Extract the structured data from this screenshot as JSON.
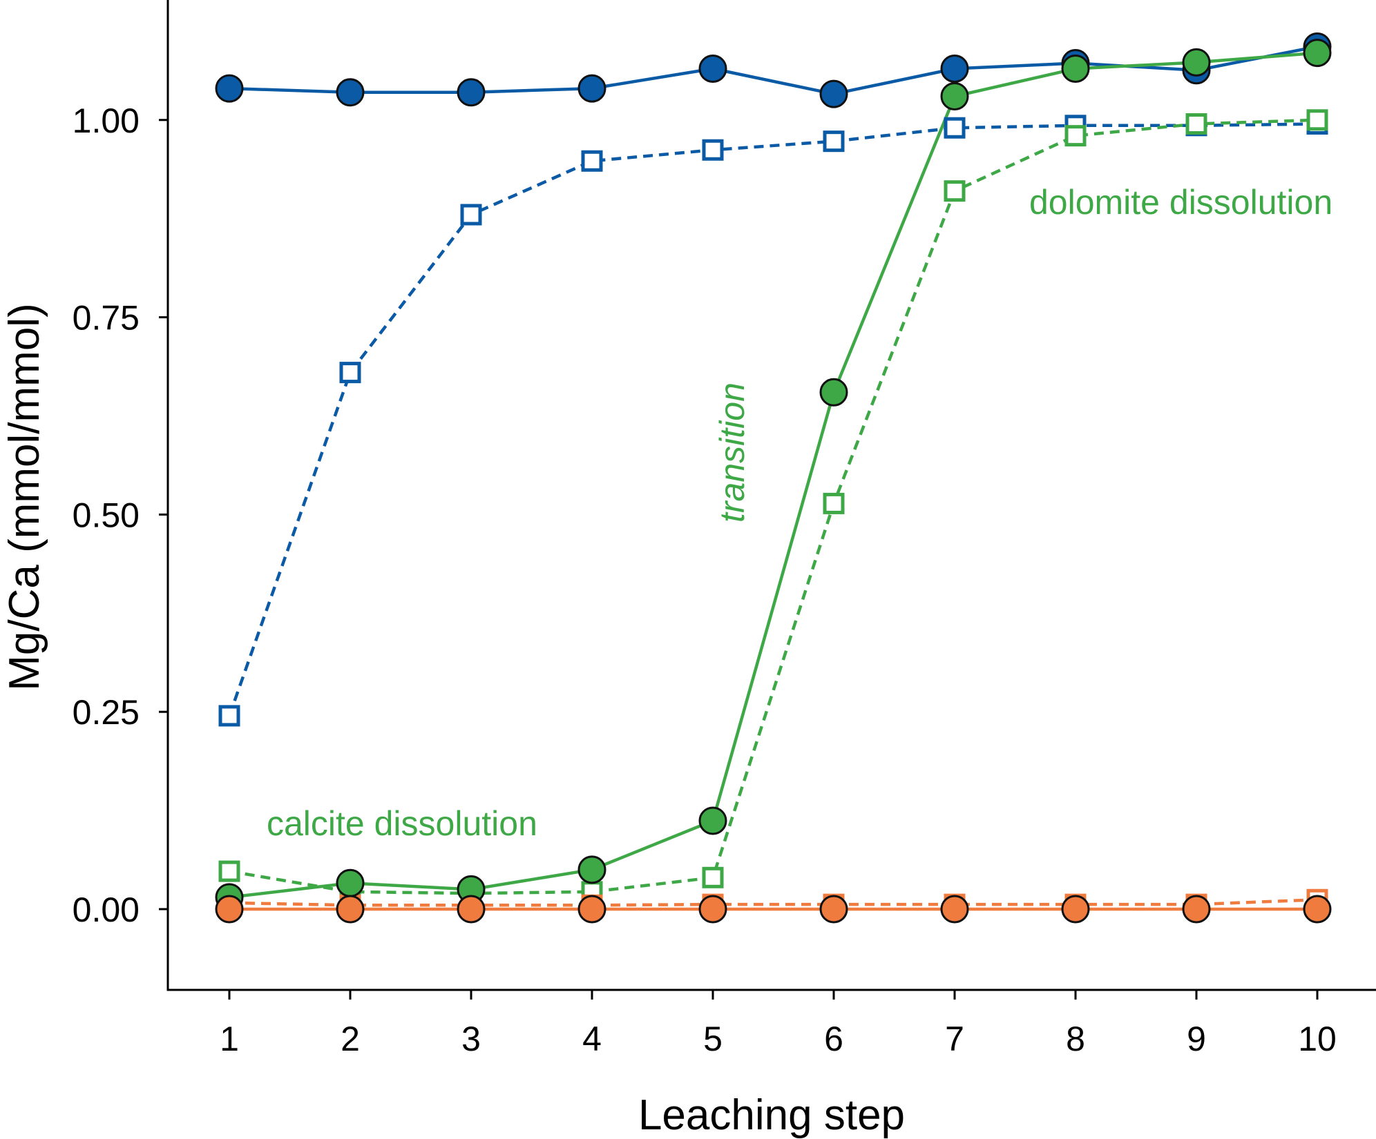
{
  "chart_data": {
    "type": "line",
    "title": "",
    "xlabel": "Leaching step",
    "ylabel": "Mg/Ca (mmol/mmol)",
    "x": [
      1,
      2,
      3,
      4,
      5,
      6,
      7,
      8,
      9,
      10
    ],
    "xlim": [
      0.5,
      10.5
    ],
    "ylim": [
      -0.1,
      1.15
    ],
    "xticks": [
      1,
      2,
      3,
      4,
      5,
      6,
      7,
      8,
      9,
      10
    ],
    "yticks": [
      0.0,
      0.25,
      0.5,
      0.75,
      1.0
    ],
    "ytick_labels": [
      "0.00",
      "0.25",
      "0.50",
      "0.75",
      "1.00"
    ],
    "grid": false,
    "legend": "none",
    "series": [
      {
        "color": "#0b5aa6",
        "marker": "circle",
        "line": "solid",
        "values": [
          1.04,
          1.035,
          1.035,
          1.04,
          1.065,
          1.033,
          1.065,
          1.072,
          1.063,
          1.093
        ]
      },
      {
        "color": "#0b5aa6",
        "marker": "square",
        "line": "dashed",
        "values": [
          0.245,
          0.68,
          0.88,
          0.948,
          0.962,
          0.973,
          0.99,
          0.993,
          0.993,
          0.995
        ]
      },
      {
        "color": "#3ea847",
        "marker": "circle",
        "line": "solid",
        "values": [
          0.015,
          0.033,
          0.025,
          0.05,
          0.112,
          0.655,
          1.03,
          1.065,
          1.073,
          1.085
        ]
      },
      {
        "color": "#3ea847",
        "marker": "square",
        "line": "dashed",
        "values": [
          0.048,
          0.022,
          0.02,
          0.022,
          0.04,
          0.514,
          0.91,
          0.98,
          0.995,
          1.0
        ]
      },
      {
        "color": "#f07b3f",
        "marker": "circle",
        "line": "solid",
        "values": [
          0.0,
          0.0,
          0.0,
          0.0,
          0.0,
          0.0,
          0.0,
          0.0,
          0.0,
          0.0
        ]
      },
      {
        "color": "#f07b3f",
        "marker": "square",
        "line": "dashed",
        "values": [
          0.008,
          0.005,
          0.005,
          0.005,
          0.006,
          0.006,
          0.006,
          0.006,
          0.006,
          0.012
        ]
      }
    ],
    "annotations": [
      {
        "text": "calcite dissolution",
        "color": "#3ea847"
      },
      {
        "text": "transition",
        "color": "#3ea847",
        "italic": true,
        "rotation": -90
      },
      {
        "text": "dolomite dissolution",
        "color": "#3ea847"
      }
    ]
  }
}
